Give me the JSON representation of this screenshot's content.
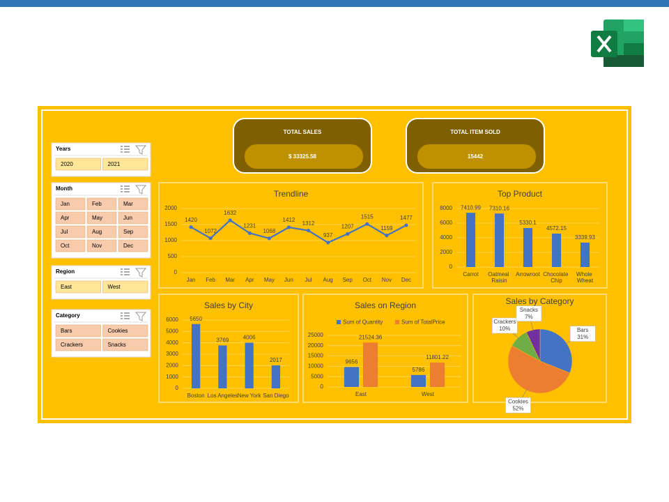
{
  "kpis": [
    {
      "title": "TOTAL SALES",
      "value": "$ 33325.58"
    },
    {
      "title": "TOTAL ITEM SOLD",
      "value": "15442"
    }
  ],
  "slicers": [
    {
      "title": "Years",
      "items": [
        "2020",
        "2021"
      ],
      "color": "#ffe699"
    },
    {
      "title": "Month",
      "items": [
        "Jan",
        "Feb",
        "Mar",
        "Apr",
        "May",
        "Jun",
        "Jul",
        "Aug",
        "Sep",
        "Oct",
        "Nov",
        "Dec"
      ],
      "color": "#f8cbad"
    },
    {
      "title": "Region",
      "items": [
        "East",
        "West"
      ],
      "color": "#ffe699"
    },
    {
      "title": "Category",
      "items": [
        "Bars",
        "Cookies",
        "Crackers",
        "Snacks"
      ],
      "color": "#f8cbad"
    }
  ],
  "chart_data": [
    {
      "type": "line",
      "title": "Trendline",
      "categories": [
        "Jan",
        "Feb",
        "Mar",
        "Apr",
        "May",
        "Jun",
        "Jul",
        "Aug",
        "Sep",
        "Oct",
        "Nov",
        "Dec"
      ],
      "values": [
        1420,
        1072,
        1632,
        1231,
        1068,
        1412,
        1312,
        937,
        1207,
        1515,
        1159,
        1477
      ],
      "color": "#4472c4",
      "ylim": [
        0,
        2000
      ],
      "yticks": [
        0,
        500,
        1000,
        1500,
        2000
      ],
      "grid": true
    },
    {
      "type": "bar",
      "title": "Top Product",
      "categories": [
        "Carrot",
        "Oatmeal Raisin",
        "Arrowroot",
        "Chocolate Chip",
        "Whole Wheat"
      ],
      "values": [
        7410.99,
        7310.16,
        5330.1,
        4572.15,
        3339.93
      ],
      "color": "#4472c4",
      "ylim": [
        0,
        8000
      ],
      "yticks": [
        0,
        2000,
        4000,
        6000,
        8000
      ],
      "grid": true
    },
    {
      "type": "bar",
      "title": "Sales by City",
      "categories": [
        "Boston",
        "Los Angeles",
        "New York",
        "San Diego"
      ],
      "values": [
        5650,
        3769,
        4006,
        2017
      ],
      "color": "#4472c4",
      "ylim": [
        0,
        6000
      ],
      "yticks": [
        0,
        1000,
        2000,
        3000,
        4000,
        5000,
        6000
      ],
      "grid": true
    },
    {
      "type": "bar",
      "title": "Sales on Region",
      "categories": [
        "East",
        "West"
      ],
      "series": [
        {
          "name": "Sum of Quantity",
          "color": "#4472c4",
          "values": [
            9656,
            5786
          ]
        },
        {
          "name": "Sum of TotalPrice",
          "color": "#ed7d31",
          "values": [
            21524.36,
            11801.22
          ]
        }
      ],
      "ylim": [
        0,
        25000
      ],
      "yticks": [
        0,
        5000,
        10000,
        15000,
        20000,
        25000
      ],
      "grid": true,
      "legend": "top"
    },
    {
      "type": "pie",
      "title": "Sales by Category",
      "categories": [
        "Bars",
        "Cookies",
        "Crackers",
        "Snacks"
      ],
      "values": [
        31,
        52,
        10,
        7
      ],
      "value_labels": [
        "31%",
        "52%",
        "10%",
        "7%"
      ],
      "colors": [
        "#4472c4",
        "#ed7d31",
        "#70ad47",
        "#7030a0"
      ]
    }
  ]
}
